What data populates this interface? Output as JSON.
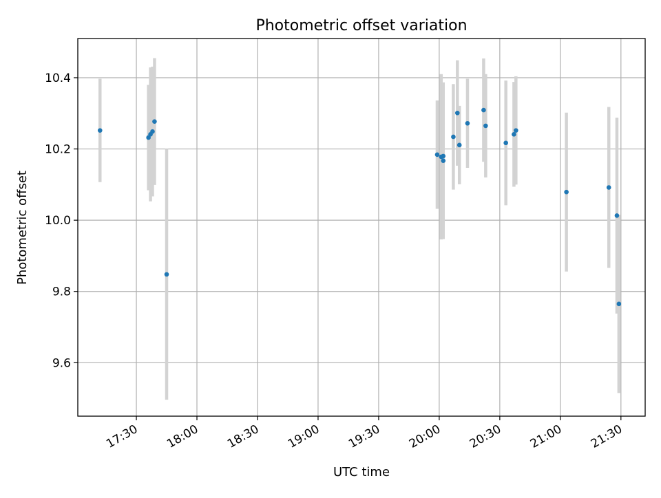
{
  "chart_data": {
    "type": "scatter",
    "title": "Photometric offset variation",
    "xlabel": "UTC time",
    "ylabel": "Photometric offset",
    "x_tick_labels": [
      "17:30",
      "18:00",
      "18:30",
      "19:00",
      "19:30",
      "20:00",
      "20:30",
      "21:00",
      "21:30"
    ],
    "y_tick_labels": [
      "9.6",
      "9.8",
      "10.0",
      "10.2",
      "10.4"
    ],
    "x_ticks": [
      "17:30",
      "18:00",
      "18:30",
      "19:00",
      "19:30",
      "20:00",
      "20:30",
      "21:00",
      "21:30"
    ],
    "y_ticks": [
      9.6,
      9.8,
      10.0,
      10.2,
      10.4
    ],
    "xlim": [
      "17:01",
      "21:42"
    ],
    "ylim": [
      9.45,
      10.51
    ],
    "grid": true,
    "colors": {
      "points": "#1f77b4",
      "errorbars": "#d3d3d3",
      "grid": "#b0b0b0"
    },
    "points": [
      {
        "x": "17:12",
        "y": 10.252,
        "err": 0.145
      },
      {
        "x": "17:36",
        "y": 10.232,
        "err": 0.148
      },
      {
        "x": "17:37",
        "y": 10.241,
        "err": 0.188
      },
      {
        "x": "17:38",
        "y": 10.249,
        "err": 0.182
      },
      {
        "x": "17:39",
        "y": 10.277,
        "err": 0.178
      },
      {
        "x": "17:45",
        "y": 9.848,
        "err": 0.352
      },
      {
        "x": "19:59",
        "y": 10.184,
        "err": 0.152
      },
      {
        "x": "20:01",
        "y": 10.178,
        "err": 0.232
      },
      {
        "x": "20:02",
        "y": 10.167,
        "err": 0.22
      },
      {
        "x": "20:02",
        "y": 10.18,
        "err": 0.188
      },
      {
        "x": "20:07",
        "y": 10.234,
        "err": 0.148
      },
      {
        "x": "20:09",
        "y": 10.301,
        "err": 0.148
      },
      {
        "x": "20:10",
        "y": 10.211,
        "err": 0.11
      },
      {
        "x": "20:14",
        "y": 10.272,
        "err": 0.125
      },
      {
        "x": "20:22",
        "y": 10.309,
        "err": 0.145
      },
      {
        "x": "20:23",
        "y": 10.265,
        "err": 0.145
      },
      {
        "x": "20:33",
        "y": 10.217,
        "err": 0.175
      },
      {
        "x": "20:37",
        "y": 10.241,
        "err": 0.147
      },
      {
        "x": "20:38",
        "y": 10.252,
        "err": 0.152
      },
      {
        "x": "21:03",
        "y": 10.079,
        "err": 0.223
      },
      {
        "x": "21:24",
        "y": 10.092,
        "err": 0.226
      },
      {
        "x": "21:28",
        "y": 10.013,
        "err": 0.275
      },
      {
        "x": "21:29",
        "y": 9.765,
        "err": 0.25
      }
    ]
  }
}
